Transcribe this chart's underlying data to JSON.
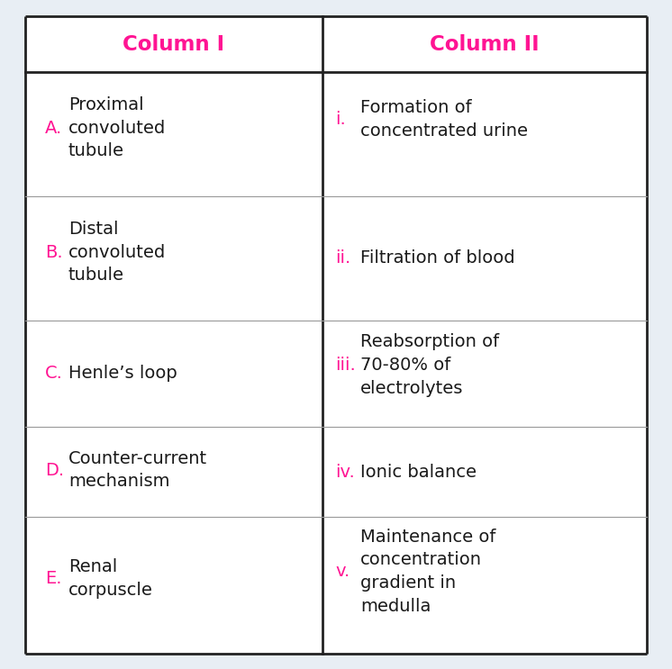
{
  "title_col1": "Column I",
  "title_col2": "Column II",
  "title_color": "#FF1493",
  "col1_labels": [
    "A.",
    "B.",
    "C.",
    "D.",
    "E."
  ],
  "col1_items": [
    "Proximal\nconvoluted\ntubule",
    "Distal\nconvoluted\ntubule",
    "Henle’s loop",
    "Counter-current\nmechanism",
    "Renal\ncorpuscle"
  ],
  "col2_labels": [
    "i.",
    "ii.",
    "iii.",
    "iv.",
    "v."
  ],
  "col2_items": [
    "Formation of\nconcentrated urine",
    "Filtration of blood",
    "Reabsorption of\n70-80% of\nelectrolytes",
    "Ionic balance",
    "Maintenance of\nconcentration\ngradient in\nmedulla"
  ],
  "label_color": "#FF1493",
  "text_color": "#1a1a1a",
  "bg_color": "#e8eef4",
  "table_bg": "#ffffff",
  "border_color": "#222222",
  "font_size": 14.0,
  "label_font_size": 14.0,
  "header_font_size": 16.5
}
